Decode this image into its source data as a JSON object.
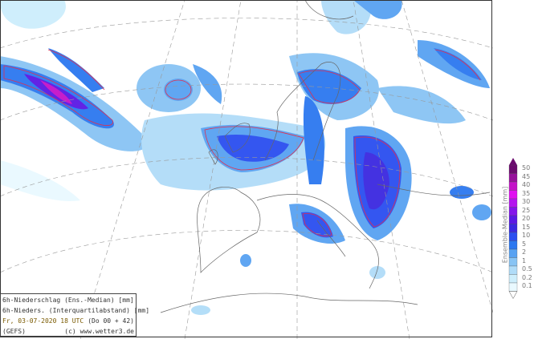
{
  "info": {
    "line1": "6h-Niederschlag (Ens.-Median) [mm]",
    "line2": "6h-Nieders. (Interquartilabstand) [mm]",
    "date": "Fr, 03-07-2020  18 UTC",
    "run": "(Do 00 + 42)",
    "model": "(GEFS)",
    "credit": "(c) www.wetter3.de"
  },
  "legend": {
    "title": "Ensemble-Median  [mm]",
    "levels": [
      {
        "value": "50",
        "color": "#6b0a6e"
      },
      {
        "value": "45",
        "color": "#96109a"
      },
      {
        "value": "40",
        "color": "#c412c8"
      },
      {
        "value": "35",
        "color": "#e010f0"
      },
      {
        "value": "30",
        "color": "#b414ee"
      },
      {
        "value": "25",
        "color": "#8414ea"
      },
      {
        "value": "20",
        "color": "#5a18e4"
      },
      {
        "value": "15",
        "color": "#3a28e0"
      },
      {
        "value": "10",
        "color": "#2a4ef0"
      },
      {
        "value": "5",
        "color": "#2c78f0"
      },
      {
        "value": "2",
        "color": "#58a2f2"
      },
      {
        "value": "1",
        "color": "#88c4f4"
      },
      {
        "value": "0.5",
        "color": "#b0dcf8"
      },
      {
        "value": "0.2",
        "color": "#cdeefc"
      },
      {
        "value": "0.1",
        "color": "#e9f9ff"
      }
    ]
  },
  "contour_color": "#e03050"
}
